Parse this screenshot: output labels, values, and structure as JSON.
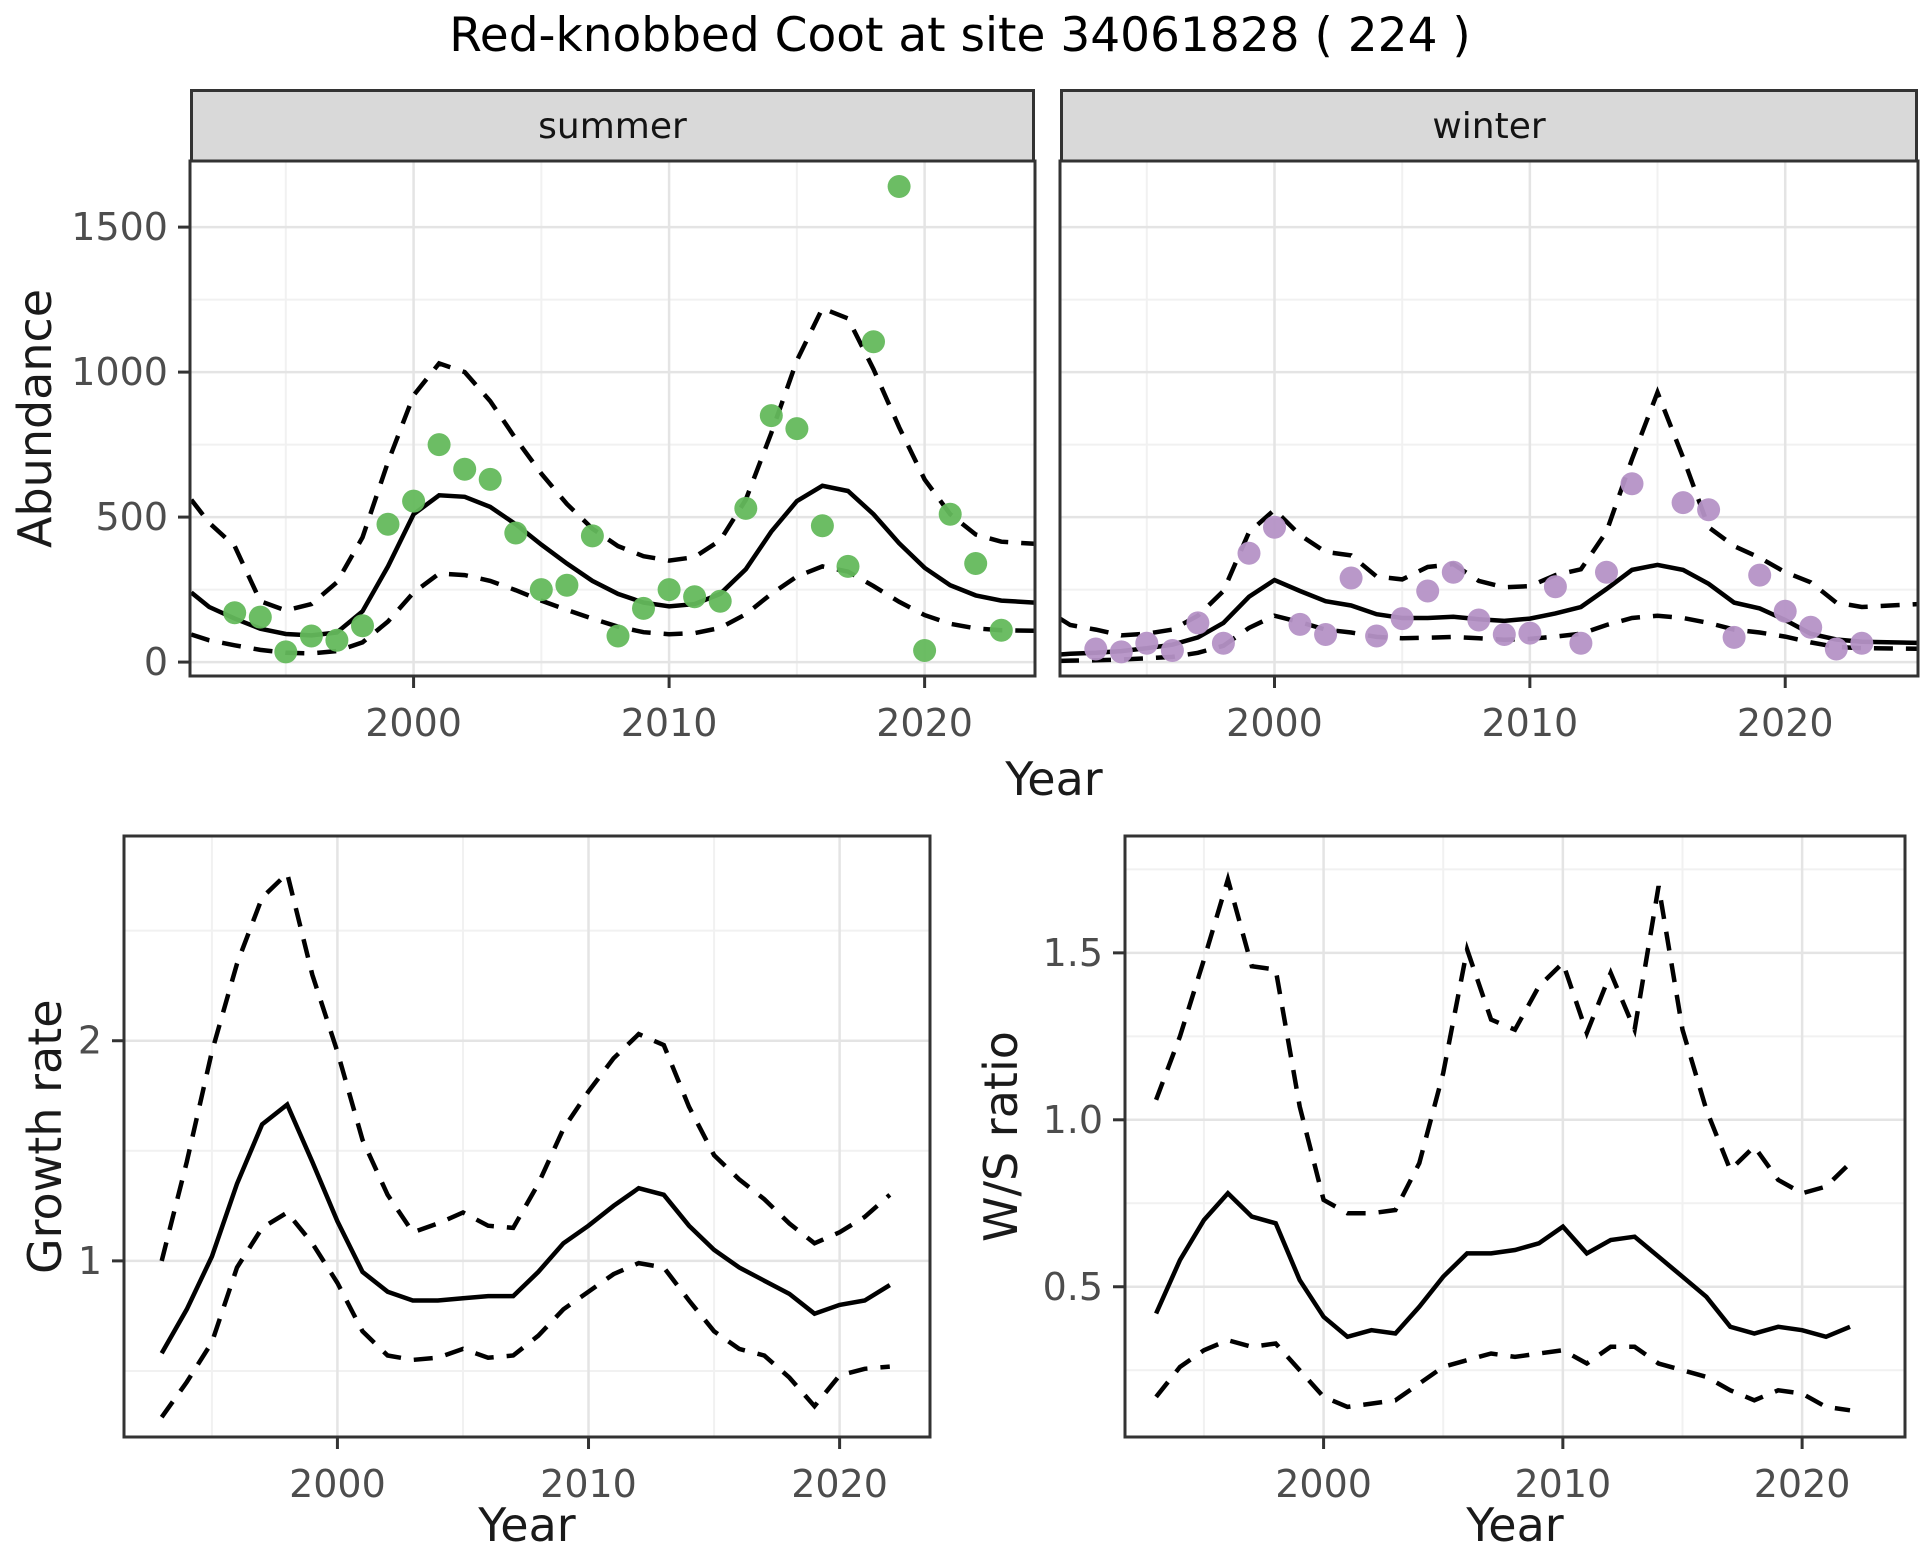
{
  "title": "Red-knobbed Coot at site 34061828 ( 224 )",
  "labels": {
    "year": "Year",
    "abundance": "Abundance",
    "growth_rate": "Growth rate",
    "ws_ratio": "W/S ratio"
  },
  "colors": {
    "summer_point": "#64b95c",
    "winter_point": "#b592c6",
    "line": "#000000",
    "strip_bg": "#d9d9d9",
    "grid_major": "#e4e4e4",
    "grid_minor": "#f1f1f1",
    "tick_label": "#4d4d4d",
    "border": "#333333"
  },
  "chart_data": [
    {
      "id": "abundance_summer",
      "panel": "summer",
      "type": "scatter",
      "facet": "summer",
      "xlabel": "Year",
      "ylabel": "Abundance",
      "xlim": [
        1991.25,
        2024.32
      ],
      "ylim": [
        -48,
        1728
      ],
      "x_ticks": [
        {
          "v": 2000,
          "label": "2000"
        },
        {
          "v": 2010,
          "label": "2010"
        },
        {
          "v": 2020,
          "label": "2020"
        }
      ],
      "x_minor": [
        1995,
        2005,
        2015
      ],
      "y_ticks": [
        {
          "v": 0,
          "label": "0"
        },
        {
          "v": 500,
          "label": "500"
        },
        {
          "v": 1000,
          "label": "1000"
        },
        {
          "v": 1500,
          "label": "1500"
        }
      ],
      "y_minor": [
        250,
        750,
        1250
      ],
      "show_y_labels": true,
      "years": [
        1993,
        1994,
        1995,
        1996,
        1997,
        1998,
        1999,
        2000,
        2001,
        2002,
        2003,
        2004,
        2005,
        2006,
        2007,
        2008,
        2009,
        2010,
        2011,
        2012,
        2013,
        2014,
        2015,
        2016,
        2017,
        2018,
        2019,
        2020,
        2021,
        2022,
        2023
      ],
      "series": [
        {
          "name": "ci_upper",
          "kind": "line",
          "style": "dashed",
          "x": [
            1991.3,
            1992,
            1993,
            1994,
            1995,
            1996,
            1997,
            1998,
            1999,
            2000,
            2001,
            2002,
            2003,
            2004,
            2005,
            2006,
            2007,
            2008,
            2009,
            2010,
            2011,
            2012,
            2013,
            2014,
            2015,
            2016,
            2017,
            2018,
            2019,
            2020,
            2021,
            2022,
            2023,
            2024.3
          ],
          "values": [
            560,
            480,
            400,
            210,
            178,
            200,
            275,
            430,
            690,
            920,
            1030,
            1000,
            900,
            770,
            650,
            545,
            460,
            400,
            365,
            350,
            362,
            420,
            560,
            790,
            1040,
            1220,
            1185,
            1010,
            810,
            630,
            510,
            440,
            415,
            408
          ]
        },
        {
          "name": "ci_lower",
          "kind": "line",
          "style": "dashed",
          "x": [
            1991.3,
            1992,
            1993,
            1994,
            1995,
            1996,
            1997,
            1998,
            1999,
            2000,
            2001,
            2002,
            2003,
            2004,
            2005,
            2006,
            2007,
            2008,
            2009,
            2010,
            2011,
            2012,
            2013,
            2014,
            2015,
            2016,
            2017,
            2018,
            2019,
            2020,
            2021,
            2022,
            2023,
            2024.3
          ],
          "values": [
            95,
            75,
            58,
            42,
            32,
            30,
            38,
            68,
            140,
            240,
            305,
            300,
            280,
            248,
            212,
            180,
            150,
            122,
            103,
            96,
            100,
            118,
            165,
            235,
            295,
            330,
            312,
            262,
            208,
            162,
            132,
            116,
            110,
            108
          ]
        },
        {
          "name": "fit",
          "kind": "line",
          "style": "solid",
          "x": [
            1991.3,
            1992,
            1993,
            1994,
            1995,
            1996,
            1997,
            1998,
            1999,
            2000,
            2001,
            2002,
            2003,
            2004,
            2005,
            2006,
            2007,
            2008,
            2009,
            2010,
            2011,
            2012,
            2013,
            2014,
            2015,
            2016,
            2017,
            2018,
            2019,
            2020,
            2021,
            2022,
            2023,
            2024.3
          ],
          "values": [
            240,
            190,
            150,
            115,
            97,
            92,
            102,
            175,
            330,
            510,
            575,
            570,
            535,
            475,
            405,
            340,
            280,
            235,
            205,
            192,
            200,
            235,
            320,
            450,
            555,
            608,
            590,
            510,
            410,
            325,
            265,
            230,
            212,
            205
          ]
        },
        {
          "name": "observed",
          "kind": "points",
          "color": "#64b95c",
          "values": [
            170,
            155,
            35,
            90,
            75,
            125,
            475,
            555,
            750,
            665,
            630,
            445,
            250,
            265,
            435,
            90,
            185,
            250,
            225,
            210,
            530,
            850,
            805,
            470,
            330,
            1105,
            1640,
            40,
            510,
            340,
            110
          ]
        }
      ]
    },
    {
      "id": "abundance_winter",
      "panel": "winter",
      "type": "scatter",
      "facet": "winter",
      "xlabel": "Year",
      "ylabel": "Abundance",
      "xlim": [
        1991.6,
        2025.2
      ],
      "ylim": [
        -48,
        1728
      ],
      "x_ticks": [
        {
          "v": 2000,
          "label": "2000"
        },
        {
          "v": 2010,
          "label": "2010"
        },
        {
          "v": 2020,
          "label": "2020"
        }
      ],
      "x_minor": [
        1995,
        2005,
        2015
      ],
      "y_ticks": [
        {
          "v": 0,
          "label": "0"
        },
        {
          "v": 500,
          "label": "500"
        },
        {
          "v": 1000,
          "label": "1000"
        },
        {
          "v": 1500,
          "label": "1500"
        }
      ],
      "y_minor": [
        250,
        750,
        1250
      ],
      "show_y_labels": false,
      "years": [
        1993,
        1994,
        1995,
        1996,
        1997,
        1998,
        1999,
        2000,
        2001,
        2002,
        2003,
        2004,
        2005,
        2006,
        2007,
        2008,
        2009,
        2010,
        2011,
        2012,
        2013,
        2014,
        2015,
        2016,
        2017,
        2018,
        2019,
        2020,
        2021,
        2022,
        2023
      ],
      "series": [
        {
          "name": "ci_upper",
          "kind": "line",
          "style": "dashed",
          "x": [
            1991.6,
            1992,
            1993,
            1994,
            1995,
            1996,
            1997,
            1998,
            1999,
            2000,
            2001,
            2002,
            2003,
            2004,
            2005,
            2006,
            2007,
            2008,
            2009,
            2010,
            2011,
            2012,
            2013,
            2014,
            2015,
            2016,
            2017,
            2018,
            2019,
            2020,
            2021,
            2022,
            2023,
            2025.2
          ],
          "values": [
            150,
            128,
            112,
            92,
            98,
            112,
            160,
            245,
            448,
            525,
            438,
            380,
            368,
            295,
            285,
            328,
            338,
            280,
            258,
            262,
            300,
            320,
            450,
            700,
            930,
            705,
            465,
            400,
            360,
            310,
            275,
            205,
            190,
            200
          ]
        },
        {
          "name": "ci_lower",
          "kind": "line",
          "style": "dashed",
          "x": [
            1991.6,
            1992,
            1993,
            1994,
            1995,
            1996,
            1997,
            1998,
            1999,
            2000,
            2001,
            2002,
            2003,
            2004,
            2005,
            2006,
            2007,
            2008,
            2009,
            2010,
            2011,
            2012,
            2013,
            2014,
            2015,
            2016,
            2017,
            2018,
            2019,
            2020,
            2021,
            2022,
            2023,
            2025.2
          ],
          "values": [
            4,
            5,
            6,
            9,
            13,
            18,
            32,
            56,
            118,
            160,
            138,
            112,
            102,
            87,
            82,
            84,
            87,
            82,
            77,
            80,
            88,
            98,
            128,
            152,
            160,
            152,
            135,
            112,
            102,
            88,
            68,
            52,
            48,
            46
          ]
        },
        {
          "name": "fit",
          "kind": "line",
          "style": "solid",
          "x": [
            1991.6,
            1992,
            1993,
            1994,
            1995,
            1996,
            1997,
            1998,
            1999,
            2000,
            2001,
            2002,
            2003,
            2004,
            2005,
            2006,
            2007,
            2008,
            2009,
            2010,
            2011,
            2012,
            2013,
            2014,
            2015,
            2016,
            2017,
            2018,
            2019,
            2020,
            2021,
            2022,
            2023,
            2025.2
          ],
          "values": [
            26,
            29,
            32,
            38,
            48,
            60,
            85,
            135,
            225,
            283,
            245,
            210,
            195,
            165,
            152,
            152,
            156,
            148,
            142,
            150,
            168,
            190,
            252,
            318,
            335,
            318,
            270,
            205,
            185,
            145,
            98,
            78,
            70,
            66
          ]
        },
        {
          "name": "observed",
          "kind": "points",
          "color": "#b592c6",
          "values": [
            45,
            35,
            65,
            40,
            135,
            65,
            375,
            465,
            130,
            95,
            290,
            90,
            150,
            245,
            310,
            145,
            95,
            100,
            260,
            65,
            310,
            615,
            null,
            550,
            525,
            85,
            300,
            175,
            120,
            45,
            65
          ]
        }
      ]
    },
    {
      "id": "growth_rate",
      "panel": "growth",
      "type": "line",
      "xlabel": "Year",
      "ylabel": "Growth rate",
      "xlim": [
        1991.5,
        2023.6
      ],
      "ylim": [
        0.2,
        2.93
      ],
      "x_ticks": [
        {
          "v": 2000,
          "label": "2000"
        },
        {
          "v": 2010,
          "label": "2010"
        },
        {
          "v": 2020,
          "label": "2020"
        }
      ],
      "x_minor": [
        1995,
        2005,
        2015
      ],
      "y_ticks": [
        {
          "v": 1,
          "label": "1"
        },
        {
          "v": 2,
          "label": "2"
        }
      ],
      "y_minor": [
        0.5,
        1.5,
        2.5
      ],
      "show_y_labels": true,
      "years": [
        1993,
        1994,
        1995,
        1996,
        1997,
        1998,
        1999,
        2000,
        2001,
        2002,
        2003,
        2004,
        2005,
        2006,
        2007,
        2008,
        2009,
        2010,
        2011,
        2012,
        2013,
        2014,
        2015,
        2016,
        2017,
        2018,
        2019,
        2020,
        2021,
        2022
      ],
      "series": [
        {
          "name": "ci_upper",
          "kind": "line",
          "style": "dashed",
          "values": [
            1.0,
            1.45,
            1.95,
            2.35,
            2.65,
            2.76,
            2.3,
            1.95,
            1.55,
            1.3,
            1.13,
            1.17,
            1.22,
            1.16,
            1.15,
            1.35,
            1.6,
            1.77,
            1.92,
            2.03,
            1.98,
            1.7,
            1.48,
            1.37,
            1.28,
            1.17,
            1.08,
            1.13,
            1.2,
            1.3
          ]
        },
        {
          "name": "ci_lower",
          "kind": "line",
          "style": "dashed",
          "values": [
            0.29,
            0.45,
            0.63,
            0.97,
            1.15,
            1.22,
            1.08,
            0.9,
            0.68,
            0.57,
            0.55,
            0.56,
            0.6,
            0.56,
            0.57,
            0.66,
            0.78,
            0.86,
            0.94,
            0.99,
            0.97,
            0.82,
            0.68,
            0.6,
            0.57,
            0.47,
            0.34,
            0.48,
            0.51,
            0.52
          ]
        },
        {
          "name": "fit",
          "kind": "line",
          "style": "solid",
          "values": [
            0.58,
            0.78,
            1.02,
            1.35,
            1.62,
            1.71,
            1.45,
            1.18,
            0.95,
            0.86,
            0.82,
            0.82,
            0.83,
            0.84,
            0.84,
            0.95,
            1.08,
            1.16,
            1.25,
            1.33,
            1.3,
            1.16,
            1.05,
            0.97,
            0.91,
            0.85,
            0.76,
            0.8,
            0.82,
            0.89
          ]
        }
      ]
    },
    {
      "id": "ws_ratio",
      "panel": "ws",
      "type": "line",
      "xlabel": "Year",
      "ylabel": "W/S ratio",
      "xlim": [
        1991.7,
        2024.3
      ],
      "ylim": [
        0.05,
        1.85
      ],
      "x_ticks": [
        {
          "v": 2000,
          "label": "2000"
        },
        {
          "v": 2010,
          "label": "2010"
        },
        {
          "v": 2020,
          "label": "2020"
        }
      ],
      "x_minor": [
        1995,
        2005,
        2015
      ],
      "y_ticks": [
        {
          "v": 0.5,
          "label": "0.5"
        },
        {
          "v": 1.0,
          "label": "1.0"
        },
        {
          "v": 1.5,
          "label": "1.5"
        }
      ],
      "y_minor": [
        0.25,
        0.75,
        1.25,
        1.75
      ],
      "show_y_labels": true,
      "years": [
        1993,
        1994,
        1995,
        1996,
        1997,
        1998,
        1999,
        2000,
        2001,
        2002,
        2003,
        2004,
        2005,
        2006,
        2007,
        2008,
        2009,
        2010,
        2011,
        2012,
        2013,
        2014,
        2015,
        2016,
        2017,
        2018,
        2019,
        2020,
        2021,
        2022
      ],
      "series": [
        {
          "name": "ci_upper",
          "kind": "line",
          "style": "dashed",
          "values": [
            1.06,
            1.25,
            1.48,
            1.72,
            1.46,
            1.45,
            1.04,
            0.76,
            0.72,
            0.72,
            0.73,
            0.87,
            1.14,
            1.51,
            1.3,
            1.27,
            1.4,
            1.47,
            1.26,
            1.44,
            1.27,
            1.7,
            1.27,
            1.03,
            0.85,
            0.92,
            0.82,
            0.78,
            0.8,
            0.87
          ]
        },
        {
          "name": "ci_lower",
          "kind": "line",
          "style": "dashed",
          "values": [
            0.17,
            0.26,
            0.31,
            0.34,
            0.32,
            0.33,
            0.25,
            0.17,
            0.14,
            0.15,
            0.16,
            0.21,
            0.26,
            0.28,
            0.3,
            0.29,
            0.3,
            0.31,
            0.27,
            0.32,
            0.32,
            0.27,
            0.25,
            0.23,
            0.19,
            0.16,
            0.19,
            0.18,
            0.14,
            0.13
          ]
        },
        {
          "name": "fit",
          "kind": "line",
          "style": "solid",
          "values": [
            0.42,
            0.58,
            0.7,
            0.78,
            0.71,
            0.69,
            0.52,
            0.41,
            0.35,
            0.37,
            0.36,
            0.44,
            0.53,
            0.6,
            0.6,
            0.61,
            0.63,
            0.68,
            0.6,
            0.64,
            0.65,
            0.59,
            0.53,
            0.47,
            0.38,
            0.36,
            0.38,
            0.37,
            0.35,
            0.38
          ]
        }
      ]
    }
  ]
}
